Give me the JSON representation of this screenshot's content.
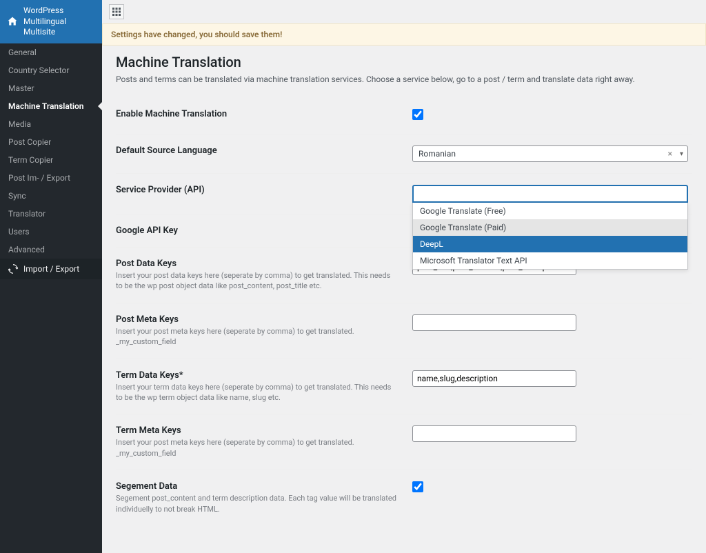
{
  "sidebar": {
    "title": "WordPress Multilingual Multisite",
    "items": [
      {
        "label": "General",
        "active": false
      },
      {
        "label": "Country Selector",
        "active": false
      },
      {
        "label": "Master",
        "active": false
      },
      {
        "label": "Machine Translation",
        "active": true
      },
      {
        "label": "Media",
        "active": false
      },
      {
        "label": "Post Copier",
        "active": false
      },
      {
        "label": "Term Copier",
        "active": false
      },
      {
        "label": "Post Im- / Export",
        "active": false
      },
      {
        "label": "Sync",
        "active": false
      },
      {
        "label": "Translator",
        "active": false
      },
      {
        "label": "Users",
        "active": false
      },
      {
        "label": "Advanced",
        "active": false
      }
    ],
    "import_export": "Import / Export"
  },
  "notice": "Settings have changed, you should save them!",
  "page": {
    "title": "Machine Translation",
    "description": "Posts and terms can be translated via machine translation services. Choose a service below, go to a post / term and translate data right away."
  },
  "fields": {
    "enable": {
      "label": "Enable Machine Translation",
      "checked": true
    },
    "source_lang": {
      "label": "Default Source Language",
      "value": "Romanian"
    },
    "provider": {
      "label": "Service Provider (API)",
      "value": "",
      "options": [
        "Google Translate (Free)",
        "Google Translate (Paid)",
        "DeepL",
        "Microsoft Translator Text API"
      ],
      "selected_index": 2,
      "hover_index": 1
    },
    "google_key": {
      "label": "Google API Key",
      "value": ""
    },
    "post_data_keys": {
      "label": "Post Data Keys",
      "desc": "Insert your post data keys here (seperate by comma) to get translated. This needs to be the wp post object data like post_content, post_title etc.",
      "value": "post_title,post_content,post_excerpt"
    },
    "post_meta_keys": {
      "label": "Post Meta Keys",
      "desc": "Insert your post meta keys here (seperate by comma) to get translated. _my_custom_field",
      "value": ""
    },
    "term_data_keys": {
      "label": "Term Data Keys*",
      "desc": "Insert your term data keys here (seperate by comma) to get translated. This needs to be the wp term object data like name, slug etc.",
      "value": "name,slug,description"
    },
    "term_meta_keys": {
      "label": "Term Meta Keys",
      "desc": "Insert your post meta keys here (seperate by comma) to get translated. _my_custom_field",
      "value": ""
    },
    "segment": {
      "label": "Segement Data",
      "desc": "Segement post_content and term description data. Each tag value will be translated individuelly to not break HTML.",
      "checked": true
    }
  }
}
